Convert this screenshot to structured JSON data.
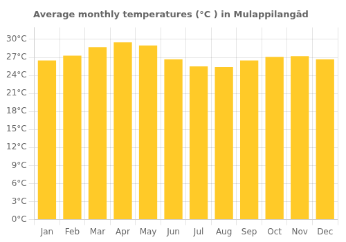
{
  "chart_data": {
    "type": "bar",
    "title": "Average monthly temperatures (°C ) in Mulappilangād",
    "categories": [
      "Jan",
      "Feb",
      "Mar",
      "Apr",
      "May",
      "Jun",
      "Jul",
      "Aug",
      "Sep",
      "Oct",
      "Nov",
      "Dec"
    ],
    "values": [
      26.5,
      27.3,
      28.7,
      29.5,
      29.0,
      26.7,
      25.5,
      25.4,
      26.5,
      27.1,
      27.2,
      26.7
    ],
    "color": "#FFCA28",
    "ylim": [
      0,
      32
    ],
    "yticks": [
      {
        "value": 0,
        "label": "0°C"
      },
      {
        "value": 3,
        "label": "3°C"
      },
      {
        "value": 6,
        "label": "6°C"
      },
      {
        "value": 9,
        "label": "9°C"
      },
      {
        "value": 12,
        "label": "12°C"
      },
      {
        "value": 15,
        "label": "15°C"
      },
      {
        "value": 18,
        "label": "18°C"
      },
      {
        "value": 21,
        "label": "21°C"
      },
      {
        "value": 24,
        "label": "24°C"
      },
      {
        "value": 27,
        "label": "27°C"
      },
      {
        "value": 30,
        "label": "30°C"
      }
    ],
    "grid": true
  }
}
